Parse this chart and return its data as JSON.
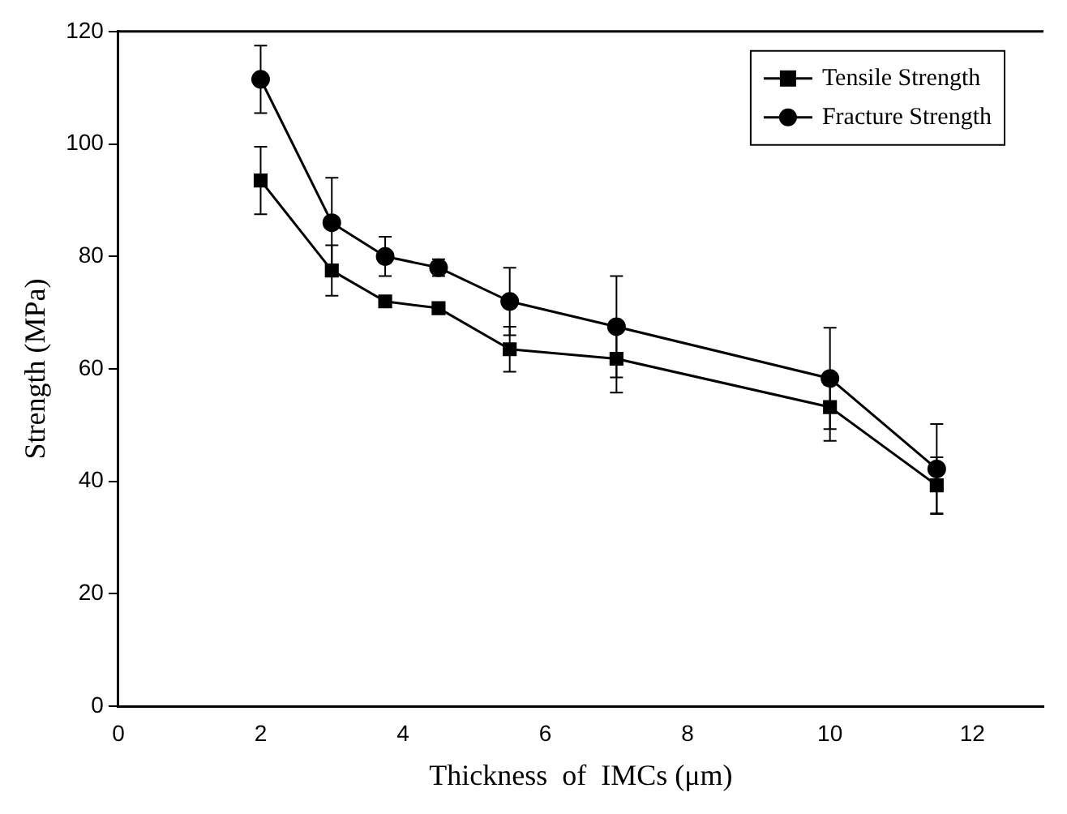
{
  "chart_data": {
    "type": "line",
    "xlabel": "Thickness  of  IMCs (μm)",
    "ylabel": "Strength (MPa)",
    "x": [
      2,
      3,
      3.75,
      4.5,
      5.5,
      7,
      10,
      11.5
    ],
    "xlim": [
      0,
      13
    ],
    "xticks": [
      0,
      2,
      4,
      6,
      8,
      10,
      12
    ],
    "ylim": [
      0,
      120
    ],
    "yticks": [
      0,
      20,
      40,
      60,
      80,
      100,
      120
    ],
    "grid": false,
    "legend": "top right",
    "line_style": "solid",
    "series": [
      {
        "name": "Tensile Strength",
        "color": "#000000",
        "marker": "square",
        "values": [
          93.5,
          77.5,
          72,
          70.8,
          63.5,
          61.8,
          53.2,
          39.3
        ],
        "errors": [
          6,
          4.5,
          null,
          null,
          4,
          6,
          6,
          5
        ]
      },
      {
        "name": "Fracture Strength",
        "color": "#000000",
        "marker": "circle",
        "values": [
          111.5,
          86,
          80,
          78,
          72,
          67.5,
          58.3,
          42.2
        ],
        "errors": [
          6,
          8,
          3.5,
          1.5,
          6,
          9,
          9,
          8
        ]
      }
    ]
  }
}
